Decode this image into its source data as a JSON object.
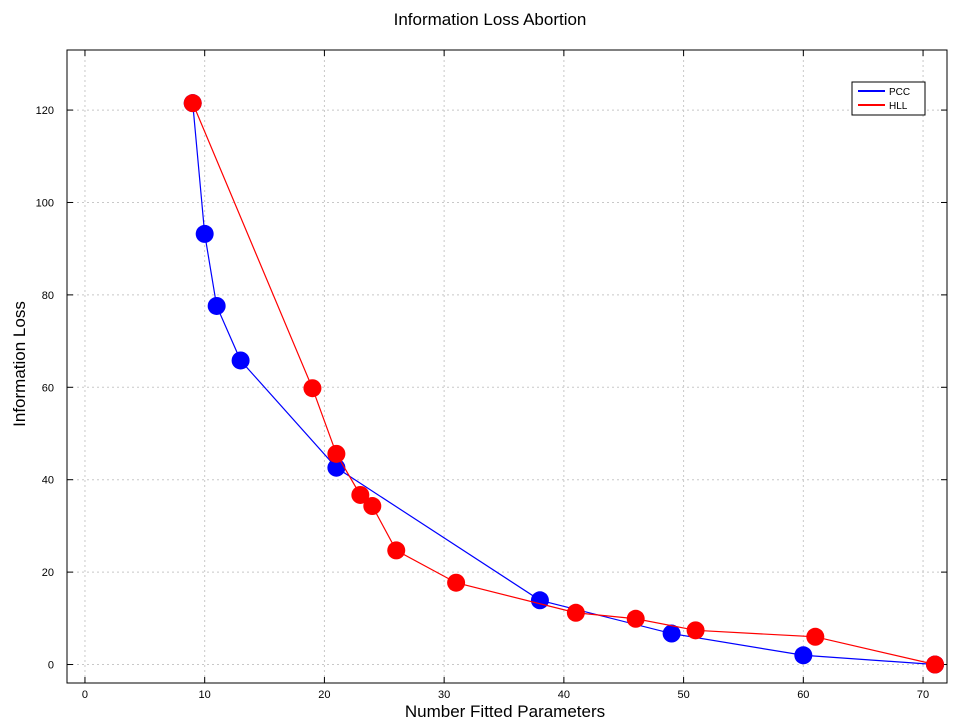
{
  "chart_data": {
    "type": "line",
    "title": "Information Loss Abortion",
    "xlabel": "Number Fitted Parameters",
    "ylabel": "Information Loss",
    "xlim": [
      -1.5,
      72
    ],
    "ylim": [
      -4,
      133
    ],
    "xticks": [
      0,
      10,
      20,
      30,
      40,
      50,
      60,
      70
    ],
    "yticks": [
      0,
      20,
      40,
      60,
      80,
      100,
      120
    ],
    "grid": true,
    "legend_position": "top-right",
    "series": [
      {
        "name": "PCC",
        "color": "#0000ff",
        "x": [
          9,
          10,
          11,
          13,
          21,
          38,
          49,
          60,
          71
        ],
        "y": [
          121.5,
          93.2,
          77.6,
          65.8,
          42.6,
          13.9,
          6.7,
          2.0,
          0.0
        ]
      },
      {
        "name": "HLL",
        "color": "#ff0000",
        "x": [
          9,
          19,
          21,
          23,
          24,
          26,
          31,
          41,
          46,
          51,
          61,
          71
        ],
        "y": [
          121.5,
          59.8,
          45.6,
          36.7,
          34.3,
          24.7,
          17.7,
          11.2,
          9.9,
          7.4,
          6.0,
          0.0
        ]
      }
    ]
  }
}
